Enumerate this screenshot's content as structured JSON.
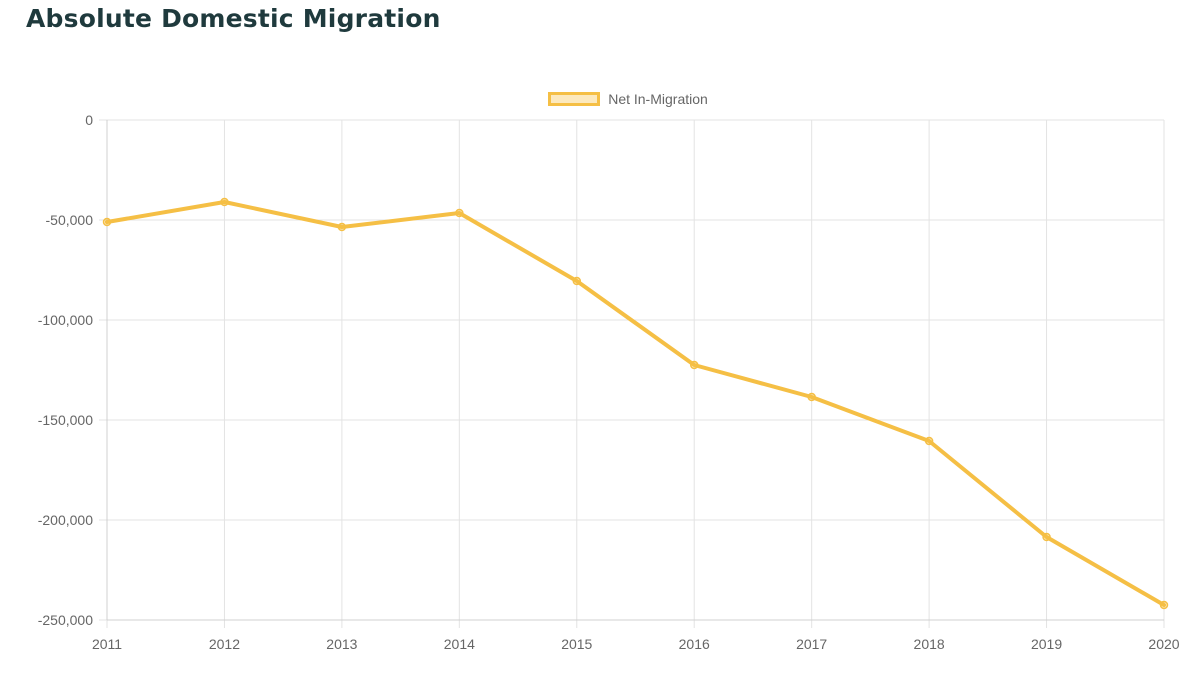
{
  "page": {
    "title": "Absolute Domestic Migration"
  },
  "chart_data": {
    "type": "line",
    "title": "",
    "xlabel": "",
    "ylabel": "",
    "x": [
      "2011",
      "2012",
      "2013",
      "2014",
      "2015",
      "2016",
      "2017",
      "2018",
      "2019",
      "2020"
    ],
    "ylim": [
      -250000,
      0
    ],
    "y_ticks": [
      0,
      -50000,
      -100000,
      -150000,
      -200000,
      -250000
    ],
    "y_tick_labels": [
      "0",
      "-50,000",
      "-100,000",
      "-150,000",
      "-200,000",
      "-250,000"
    ],
    "grid": true,
    "legend": {
      "position": "top-center"
    },
    "series": [
      {
        "name": "Net In-Migration",
        "color": "#f5bf45",
        "fill": "rgba(245, 191, 69, 0.35)",
        "values": [
          -51000,
          -41000,
          -53500,
          -46500,
          -80500,
          -122500,
          -138500,
          -160500,
          -208500,
          -242500
        ]
      }
    ]
  }
}
